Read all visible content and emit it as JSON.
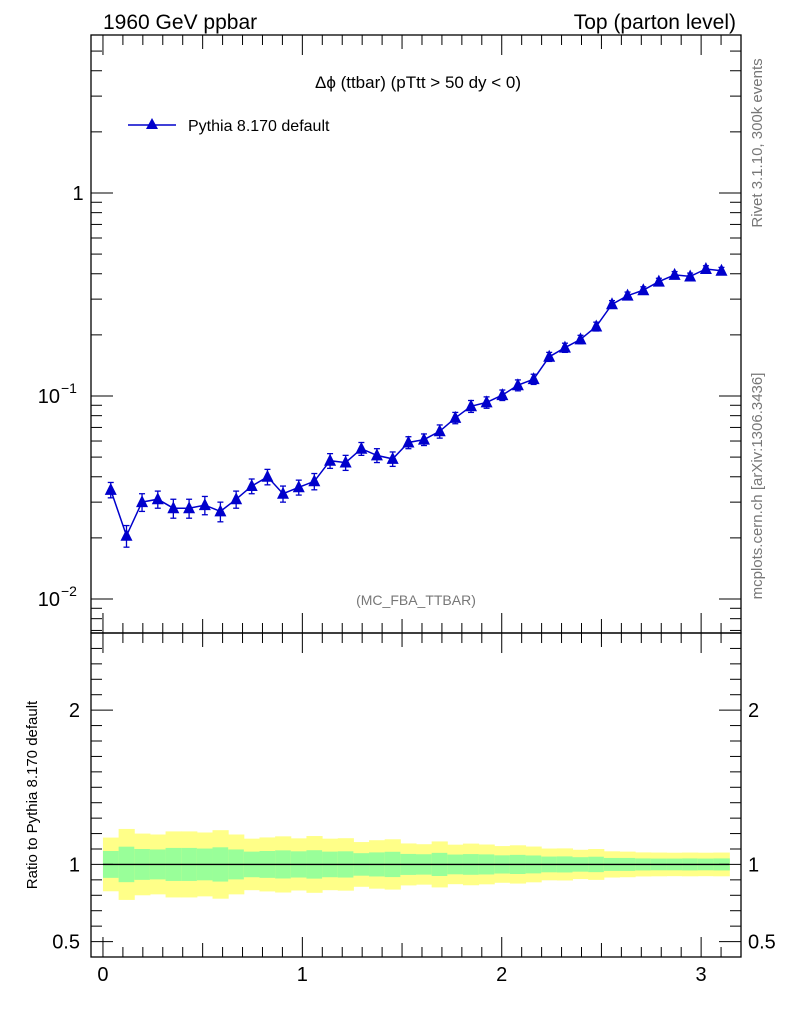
{
  "header": {
    "left": "1960 GeV ppbar",
    "right": "Top (parton level)"
  },
  "side_labels": {
    "rivet": "Rivet 3.1.10,  300k events",
    "mcplots": "mcplots.cern.ch [arXiv:1306.3436]"
  },
  "chart_data": [
    {
      "type": "line",
      "title": "Δϕ (ttbar) (pTtt > 50 dy < 0)",
      "analysis_label": "(MC_FBA_TTBAR)",
      "yscale": "log",
      "xlim": [
        -0.06,
        3.2
      ],
      "ylim": [
        0.0068,
        6.0
      ],
      "y_ticks": [
        {
          "v": 0.01,
          "label": "10",
          "exp": "−2"
        },
        {
          "v": 0.1,
          "label": "10",
          "exp": "−1"
        },
        {
          "v": 1,
          "label": "1",
          "exp": ""
        }
      ],
      "legend_position": "top-left",
      "series": [
        {
          "name": "Pythia 8.170 default",
          "color": "#0000cc",
          "marker": "triangle-up",
          "x": [
            0.039,
            0.118,
            0.196,
            0.275,
            0.353,
            0.432,
            0.511,
            0.589,
            0.668,
            0.746,
            0.825,
            0.903,
            0.982,
            1.06,
            1.139,
            1.217,
            1.296,
            1.374,
            1.453,
            1.532,
            1.61,
            1.689,
            1.767,
            1.846,
            1.924,
            2.003,
            2.081,
            2.16,
            2.238,
            2.317,
            2.395,
            2.474,
            2.553,
            2.631,
            2.71,
            2.788,
            2.867,
            2.945,
            3.024,
            3.102
          ],
          "y": [
            0.0345,
            0.0205,
            0.03,
            0.031,
            0.028,
            0.028,
            0.029,
            0.027,
            0.031,
            0.036,
            0.04,
            0.033,
            0.0355,
            0.038,
            0.048,
            0.047,
            0.055,
            0.051,
            0.049,
            0.059,
            0.061,
            0.067,
            0.078,
            0.089,
            0.093,
            0.101,
            0.113,
            0.121,
            0.156,
            0.173,
            0.19,
            0.22,
            0.283,
            0.312,
            0.332,
            0.366,
            0.395,
            0.388,
            0.422,
            0.414
          ],
          "err": [
            0.003,
            0.0025,
            0.003,
            0.003,
            0.003,
            0.003,
            0.003,
            0.003,
            0.003,
            0.003,
            0.0035,
            0.003,
            0.003,
            0.0035,
            0.004,
            0.004,
            0.004,
            0.004,
            0.004,
            0.004,
            0.004,
            0.005,
            0.005,
            0.006,
            0.006,
            0.006,
            0.007,
            0.007,
            0.008,
            0.009,
            0.009,
            0.011,
            0.012,
            0.013,
            0.013,
            0.014,
            0.015,
            0.015,
            0.016,
            0.016
          ]
        }
      ]
    },
    {
      "type": "area",
      "ylabel": "Ratio to Pythia 8.170 default",
      "xlim": [
        -0.06,
        3.2
      ],
      "ylim": [
        0.4,
        2.5
      ],
      "x_ticks": [
        0,
        1,
        2,
        3
      ],
      "y_ticks": [
        0.5,
        1,
        2
      ],
      "bin_edges": [
        0,
        0.0785,
        0.157,
        0.2355,
        0.314,
        0.3925,
        0.471,
        0.5495,
        0.628,
        0.7065,
        0.785,
        0.8635,
        0.942,
        1.0205,
        1.099,
        1.1775,
        1.256,
        1.3345,
        1.413,
        1.4915,
        1.57,
        1.6485,
        1.727,
        1.8055,
        1.884,
        1.9625,
        2.041,
        2.1195,
        2.198,
        2.2765,
        2.355,
        2.4335,
        2.512,
        2.5905,
        2.669,
        2.7475,
        2.826,
        2.9045,
        2.983,
        3.0615,
        3.1416
      ],
      "band_inner_half": [
        0.087,
        0.115,
        0.1,
        0.097,
        0.107,
        0.107,
        0.103,
        0.111,
        0.097,
        0.083,
        0.087,
        0.091,
        0.085,
        0.092,
        0.083,
        0.085,
        0.073,
        0.078,
        0.082,
        0.068,
        0.066,
        0.075,
        0.064,
        0.067,
        0.065,
        0.059,
        0.062,
        0.058,
        0.051,
        0.052,
        0.047,
        0.05,
        0.042,
        0.042,
        0.039,
        0.038,
        0.038,
        0.039,
        0.038,
        0.039
      ],
      "band_outer_half": [
        0.174,
        0.23,
        0.2,
        0.194,
        0.214,
        0.214,
        0.207,
        0.222,
        0.194,
        0.167,
        0.175,
        0.182,
        0.169,
        0.184,
        0.167,
        0.17,
        0.145,
        0.157,
        0.163,
        0.136,
        0.131,
        0.149,
        0.128,
        0.135,
        0.129,
        0.119,
        0.124,
        0.116,
        0.103,
        0.104,
        0.095,
        0.1,
        0.085,
        0.083,
        0.078,
        0.077,
        0.076,
        0.077,
        0.076,
        0.077
      ],
      "colors": {
        "inner": "#99ff99",
        "outer": "#ffff88",
        "line": "#000000"
      }
    }
  ]
}
